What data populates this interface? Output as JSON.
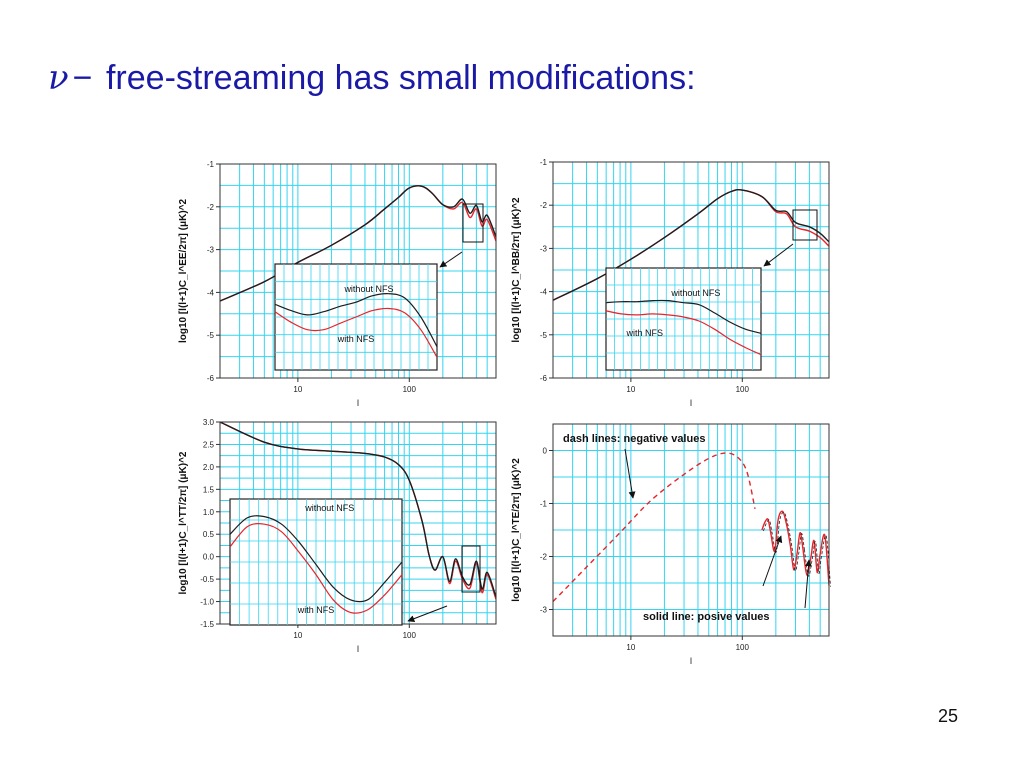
{
  "slide": {
    "title_symbol": "ν",
    "title_dash": "−",
    "title_text": "free-streaming has small modifications:",
    "page_number": "25"
  },
  "colors": {
    "grid": "#35d4f0",
    "curve_with_nfs": "#e8242b",
    "curve_without_nfs": "#1e1e1e",
    "title": "#1a1aa6"
  },
  "chart_data": [
    {
      "id": "EE",
      "type": "line",
      "xscale": "log",
      "xlim": [
        2,
        600
      ],
      "ylim": [
        -6,
        -1
      ],
      "xticks": [
        10,
        100
      ],
      "xtick_labels": [
        "10",
        "100"
      ],
      "yticks": [
        -6,
        -5,
        -4,
        -3,
        -2,
        -1
      ],
      "ytick_labels": [
        "-6",
        "-5",
        "-4",
        "-3",
        "-2",
        "-1"
      ],
      "xlabel": "l",
      "ylabel": "log10 [l(l+1)C_l^EE/2π] (μK)^2",
      "grid": true,
      "series": [
        {
          "id": "nfs",
          "x": [
            2,
            5,
            10,
            20,
            40,
            60,
            80,
            100,
            130,
            160,
            200,
            250,
            300,
            350,
            400,
            450,
            500,
            600
          ],
          "y": [
            -4.2,
            -3.75,
            -3.3,
            -2.9,
            -2.42,
            -2.05,
            -1.78,
            -1.56,
            -1.52,
            -1.68,
            -1.95,
            -2.05,
            -1.9,
            -2.25,
            -2.05,
            -2.45,
            -2.3,
            -2.8
          ]
        },
        {
          "id": "no_nfs",
          "x": [
            2,
            5,
            10,
            20,
            40,
            60,
            80,
            100,
            130,
            160,
            200,
            250,
            300,
            350,
            400,
            450,
            500,
            600
          ],
          "y": [
            -4.2,
            -3.75,
            -3.3,
            -2.9,
            -2.42,
            -2.05,
            -1.78,
            -1.56,
            -1.52,
            -1.68,
            -1.95,
            -2.0,
            -1.82,
            -2.15,
            -1.97,
            -2.35,
            -2.2,
            -2.7
          ]
        }
      ],
      "inset": {
        "label_without": "without NFS",
        "label_with": "with NFS",
        "series": [
          {
            "id": "no_nfs",
            "t": [
              0,
              0.1,
              0.2,
              0.3,
              0.4,
              0.5,
              0.6,
              0.7,
              0.8,
              0.9,
              1.0
            ],
            "v": [
              0.62,
              0.56,
              0.52,
              0.55,
              0.6,
              0.64,
              0.7,
              0.72,
              0.68,
              0.5,
              0.22
            ]
          },
          {
            "id": "nfs",
            "t": [
              0,
              0.1,
              0.2,
              0.3,
              0.4,
              0.5,
              0.6,
              0.7,
              0.8,
              0.9,
              1.0
            ],
            "v": [
              0.55,
              0.45,
              0.38,
              0.38,
              0.44,
              0.5,
              0.56,
              0.58,
              0.54,
              0.38,
              0.12
            ]
          }
        ]
      }
    },
    {
      "id": "BB",
      "type": "line",
      "xscale": "log",
      "xlim": [
        2,
        600
      ],
      "ylim": [
        -6,
        -1
      ],
      "xticks": [
        10,
        100
      ],
      "xtick_labels": [
        "10",
        "100"
      ],
      "yticks": [
        -6,
        -5,
        -4,
        -3,
        -2,
        -1
      ],
      "ytick_labels": [
        "-6",
        "-5",
        "-4",
        "-3",
        "-2",
        "-1"
      ],
      "xlabel": "l",
      "ylabel": "log10 [l(l+1)C_l^BB/2π] (μK)^2",
      "grid": true,
      "series": [
        {
          "id": "nfs",
          "x": [
            2,
            5,
            10,
            20,
            40,
            60,
            80,
            100,
            150,
            200,
            250,
            300,
            400,
            500,
            600
          ],
          "y": [
            -4.2,
            -3.7,
            -3.25,
            -2.75,
            -2.2,
            -1.85,
            -1.68,
            -1.65,
            -1.8,
            -2.15,
            -2.2,
            -2.5,
            -2.6,
            -2.75,
            -2.95
          ]
        },
        {
          "id": "no_nfs",
          "x": [
            2,
            5,
            10,
            20,
            40,
            60,
            80,
            100,
            150,
            200,
            250,
            300,
            400,
            500,
            600
          ],
          "y": [
            -4.2,
            -3.7,
            -3.25,
            -2.75,
            -2.2,
            -1.85,
            -1.68,
            -1.65,
            -1.8,
            -2.12,
            -2.15,
            -2.4,
            -2.5,
            -2.65,
            -2.85
          ]
        }
      ],
      "inset": {
        "label_without": "without NFS",
        "label_with": "with NFS",
        "series": [
          {
            "id": "no_nfs",
            "t": [
              0,
              0.1,
              0.2,
              0.3,
              0.4,
              0.5,
              0.6,
              0.7,
              0.8,
              0.9,
              1.0
            ],
            "v": [
              0.66,
              0.67,
              0.67,
              0.68,
              0.68,
              0.66,
              0.64,
              0.56,
              0.47,
              0.4,
              0.36
            ]
          },
          {
            "id": "nfs",
            "t": [
              0,
              0.1,
              0.2,
              0.3,
              0.4,
              0.5,
              0.6,
              0.7,
              0.8,
              0.9,
              1.0
            ],
            "v": [
              0.58,
              0.55,
              0.54,
              0.55,
              0.54,
              0.52,
              0.48,
              0.4,
              0.3,
              0.22,
              0.15
            ]
          }
        ]
      }
    },
    {
      "id": "TT",
      "type": "line",
      "xscale": "log",
      "xlim": [
        2,
        600
      ],
      "ylim": [
        -1.5,
        3.0
      ],
      "xticks": [
        10,
        100
      ],
      "xtick_labels": [
        "10",
        "100"
      ],
      "yticks": [
        -1.5,
        -1.0,
        -0.5,
        0.0,
        0.5,
        1.0,
        1.5,
        2.0,
        2.5,
        3.0
      ],
      "ytick_labels": [
        "-1.5",
        "-1.0",
        "-0.5",
        "0.0",
        "0.5",
        "1.0",
        "1.5",
        "2.0",
        "2.5",
        "3.0"
      ],
      "xlabel": "l",
      "ylabel": "log10 [l(l+1)C_l^TT/2π] (μK)^2",
      "grid": true,
      "series": [
        {
          "id": "nfs",
          "x": [
            2,
            5,
            10,
            20,
            40,
            60,
            80,
            100,
            130,
            150,
            170,
            200,
            230,
            260,
            300,
            350,
            400,
            450,
            500,
            600
          ],
          "y": [
            3.0,
            2.55,
            2.4,
            2.35,
            2.3,
            2.22,
            2.05,
            1.7,
            0.8,
            0.05,
            -0.3,
            0.0,
            -0.6,
            -0.1,
            -0.5,
            -0.7,
            -0.15,
            -0.8,
            -0.4,
            -0.95
          ]
        },
        {
          "id": "no_nfs",
          "x": [
            2,
            5,
            10,
            20,
            40,
            60,
            80,
            100,
            130,
            150,
            170,
            200,
            230,
            260,
            300,
            350,
            400,
            450,
            500,
            600
          ],
          "y": [
            3.0,
            2.55,
            2.4,
            2.35,
            2.3,
            2.22,
            2.05,
            1.7,
            0.8,
            0.05,
            -0.3,
            0.0,
            -0.55,
            -0.05,
            -0.45,
            -0.62,
            -0.1,
            -0.72,
            -0.35,
            -0.9
          ]
        }
      ],
      "inset": {
        "label_without": "without NFS",
        "label_with": "with NFS",
        "series": [
          {
            "id": "no_nfs",
            "t": [
              0,
              0.1,
              0.2,
              0.3,
              0.4,
              0.5,
              0.6,
              0.7,
              0.8,
              0.9,
              1.0
            ],
            "v": [
              0.72,
              0.85,
              0.86,
              0.8,
              0.66,
              0.48,
              0.3,
              0.2,
              0.2,
              0.34,
              0.5
            ]
          },
          {
            "id": "nfs",
            "t": [
              0,
              0.1,
              0.2,
              0.3,
              0.4,
              0.5,
              0.6,
              0.7,
              0.8,
              0.9,
              1.0
            ],
            "v": [
              0.62,
              0.78,
              0.8,
              0.74,
              0.58,
              0.4,
              0.2,
              0.1,
              0.12,
              0.24,
              0.4
            ]
          }
        ]
      }
    },
    {
      "id": "TE",
      "type": "line",
      "xscale": "log",
      "xlim": [
        2,
        600
      ],
      "ylim": [
        -3.5,
        0.5
      ],
      "xticks": [
        10,
        100
      ],
      "xtick_labels": [
        "10",
        "100"
      ],
      "yticks": [
        -3,
        -2,
        -1,
        0
      ],
      "ytick_labels": [
        "-3",
        "-2",
        "-1",
        "0"
      ],
      "xlabel": "l",
      "ylabel": "log10 [l(l+1)C_l^TE/2π] (μK)^2",
      "grid": true,
      "annotation_negative": "dash lines: negative values",
      "annotation_positive": "solid line: posive values",
      "series": [
        {
          "id": "negative",
          "style": "dash",
          "x": [
            2,
            4,
            8,
            15,
            30,
            50,
            70,
            90,
            110,
            130
          ],
          "y": [
            -2.85,
            -2.2,
            -1.55,
            -0.95,
            -0.45,
            -0.15,
            -0.05,
            -0.12,
            -0.4,
            -1.1
          ]
        },
        {
          "id": "positive",
          "style": "solid",
          "x": [
            150,
            160,
            170,
            180,
            195,
            210,
            230,
            250,
            270,
            290,
            310,
            330,
            350
          ],
          "y": [
            -1.5,
            -1.35,
            -1.3,
            -1.55,
            -1.9,
            -1.3,
            -1.15,
            -1.4,
            -1.8,
            -2.25,
            -1.95,
            -1.55,
            -1.85
          ]
        },
        {
          "id": "positive_tail",
          "style": "solid",
          "x": [
            350,
            380,
            410,
            440,
            470,
            500,
            550,
            600
          ],
          "y": [
            -1.85,
            -2.35,
            -2.05,
            -1.7,
            -2.3,
            -1.95,
            -1.6,
            -2.55
          ]
        }
      ]
    }
  ]
}
